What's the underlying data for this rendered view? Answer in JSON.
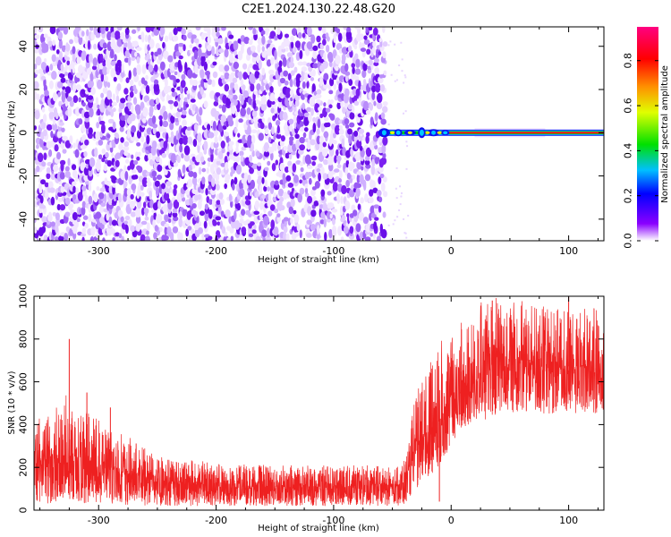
{
  "title": "C2E1.2024.130.22.48.G20",
  "colors": {
    "snr_line": "#ee2020",
    "spectrogram_noise": "#7a1ff0",
    "colorbar_stops": [
      "#ffffff",
      "#8a00ff",
      "#0000ff",
      "#00c0ff",
      "#00e000",
      "#e0ff00",
      "#ff9000",
      "#ff0000",
      "#ff0080"
    ]
  },
  "chart_data": [
    {
      "type": "heatmap",
      "name": "spectrogram",
      "xlabel": "Height of straight line (km)",
      "ylabel": "Frequency (Hz)",
      "xlim": [
        -355,
        130
      ],
      "ylim": [
        -50,
        49
      ],
      "xticks": [
        -300,
        -200,
        -100,
        0,
        100
      ],
      "yticks": [
        -40,
        -20,
        0,
        20,
        40
      ],
      "noise_region_x": [
        -355,
        -56
      ],
      "signal_line_x": [
        -58,
        130
      ],
      "signal_frequency_hz": 0,
      "colorbar": {
        "label": "Normalized spectral amplitude",
        "range": [
          0,
          0.95
        ],
        "ticks": [
          0.0,
          0.2,
          0.4,
          0.6,
          0.8
        ]
      }
    },
    {
      "type": "line",
      "name": "snr",
      "xlabel": "Height of straight line (km)",
      "ylabel": "SNR (10 * v/v)",
      "xlim": [
        -355,
        130
      ],
      "ylim": [
        0,
        1000
      ],
      "xticks": [
        -300,
        -200,
        -100,
        0,
        100
      ],
      "yticks": [
        0,
        200,
        400,
        600,
        800,
        1000
      ],
      "envelope": {
        "x": [
          -355,
          -340,
          -325,
          -300,
          -280,
          -250,
          -200,
          -150,
          -100,
          -60,
          -40,
          -35,
          -30,
          -20,
          -10,
          0,
          10,
          30,
          40,
          60,
          80,
          100,
          130
        ],
        "min": [
          30,
          30,
          40,
          30,
          25,
          20,
          20,
          20,
          20,
          20,
          20,
          40,
          100,
          150,
          200,
          300,
          380,
          420,
          450,
          460,
          450,
          450,
          450
        ],
        "max": [
          400,
          500,
          550,
          420,
          360,
          260,
          220,
          210,
          210,
          210,
          230,
          350,
          600,
          700,
          800,
          800,
          950,
          980,
          1000,
          980,
          950,
          930,
          960
        ]
      },
      "mean": {
        "x": [
          -355,
          -330,
          -300,
          -250,
          -200,
          -100,
          -40,
          -30,
          -10,
          0,
          20,
          40,
          80,
          130
        ],
        "y": [
          200,
          250,
          200,
          140,
          110,
          110,
          120,
          300,
          420,
          500,
          600,
          700,
          680,
          660
        ]
      },
      "spikes": [
        {
          "x": -325,
          "y": 800
        },
        {
          "x": -310,
          "y": 550
        },
        {
          "x": -290,
          "y": 480
        },
        {
          "x": -10,
          "y": 40
        },
        {
          "x": 35,
          "y": 980
        },
        {
          "x": 100,
          "y": 1000
        }
      ]
    }
  ]
}
